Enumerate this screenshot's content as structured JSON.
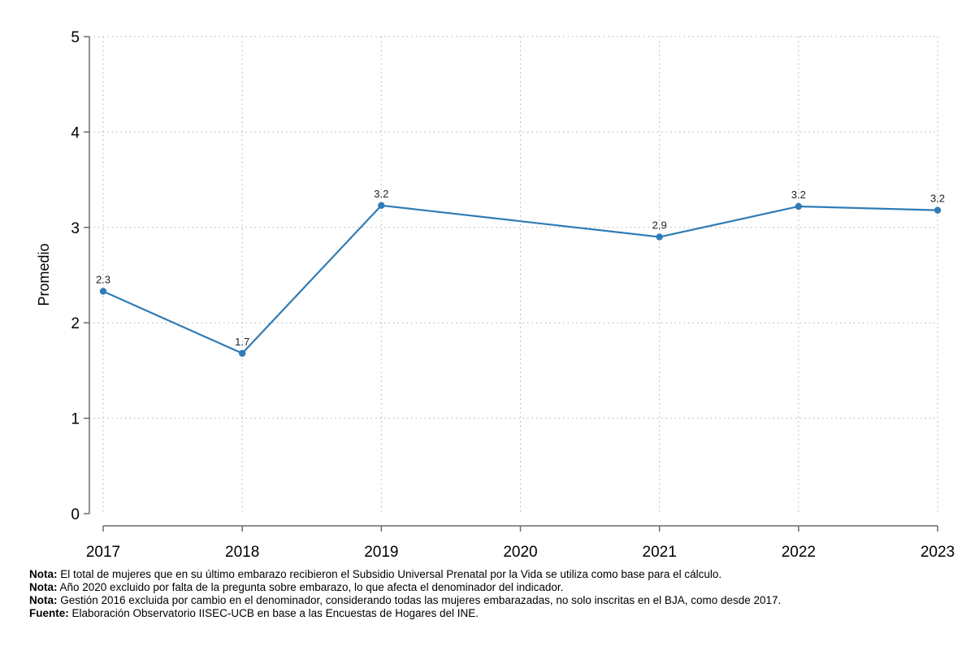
{
  "chart_data": {
    "type": "line",
    "title": "",
    "xlabel": "",
    "ylabel": "Promedio",
    "x_ticks": [
      "2017",
      "2018",
      "2019",
      "2020",
      "2021",
      "2022",
      "2023"
    ],
    "y_ticks": [
      "0",
      "1",
      "2",
      "3",
      "4",
      "5"
    ],
    "ylim": [
      0,
      5
    ],
    "grid": true,
    "series": [
      {
        "color": "#2f7bb5",
        "points": [
          {
            "x": "2017",
            "y": 2.33,
            "label": "2.3"
          },
          {
            "x": "2018",
            "y": 1.68,
            "label": "1.7"
          },
          {
            "x": "2019",
            "y": 3.23,
            "label": "3.2"
          },
          {
            "x": "2021",
            "y": 2.9,
            "label": "2.9"
          },
          {
            "x": "2022",
            "y": 3.22,
            "label": "3.2"
          },
          {
            "x": "2023",
            "y": 3.18,
            "label": "3.2"
          }
        ]
      }
    ]
  },
  "notes": [
    {
      "label": "Nota:",
      "text": " El total de mujeres que en su último embarazo recibieron el Subsidio Universal Prenatal por la Vida se utiliza como base para el cálculo."
    },
    {
      "label": "Nota:",
      "text": " Año 2020 excluido por falta de la pregunta sobre embarazo, lo que afecta el denominador del indicador."
    },
    {
      "label": "Nota:",
      "text": " Gestión 2016 excluida por cambio en el denominador, considerando todas las mujeres embarazadas, no solo inscritas en el BJA, como desde 2017."
    },
    {
      "label": "Fuente:",
      "text": " Elaboración Observatorio IISEC-UCB en base a las Encuestas de Hogares del INE."
    }
  ]
}
